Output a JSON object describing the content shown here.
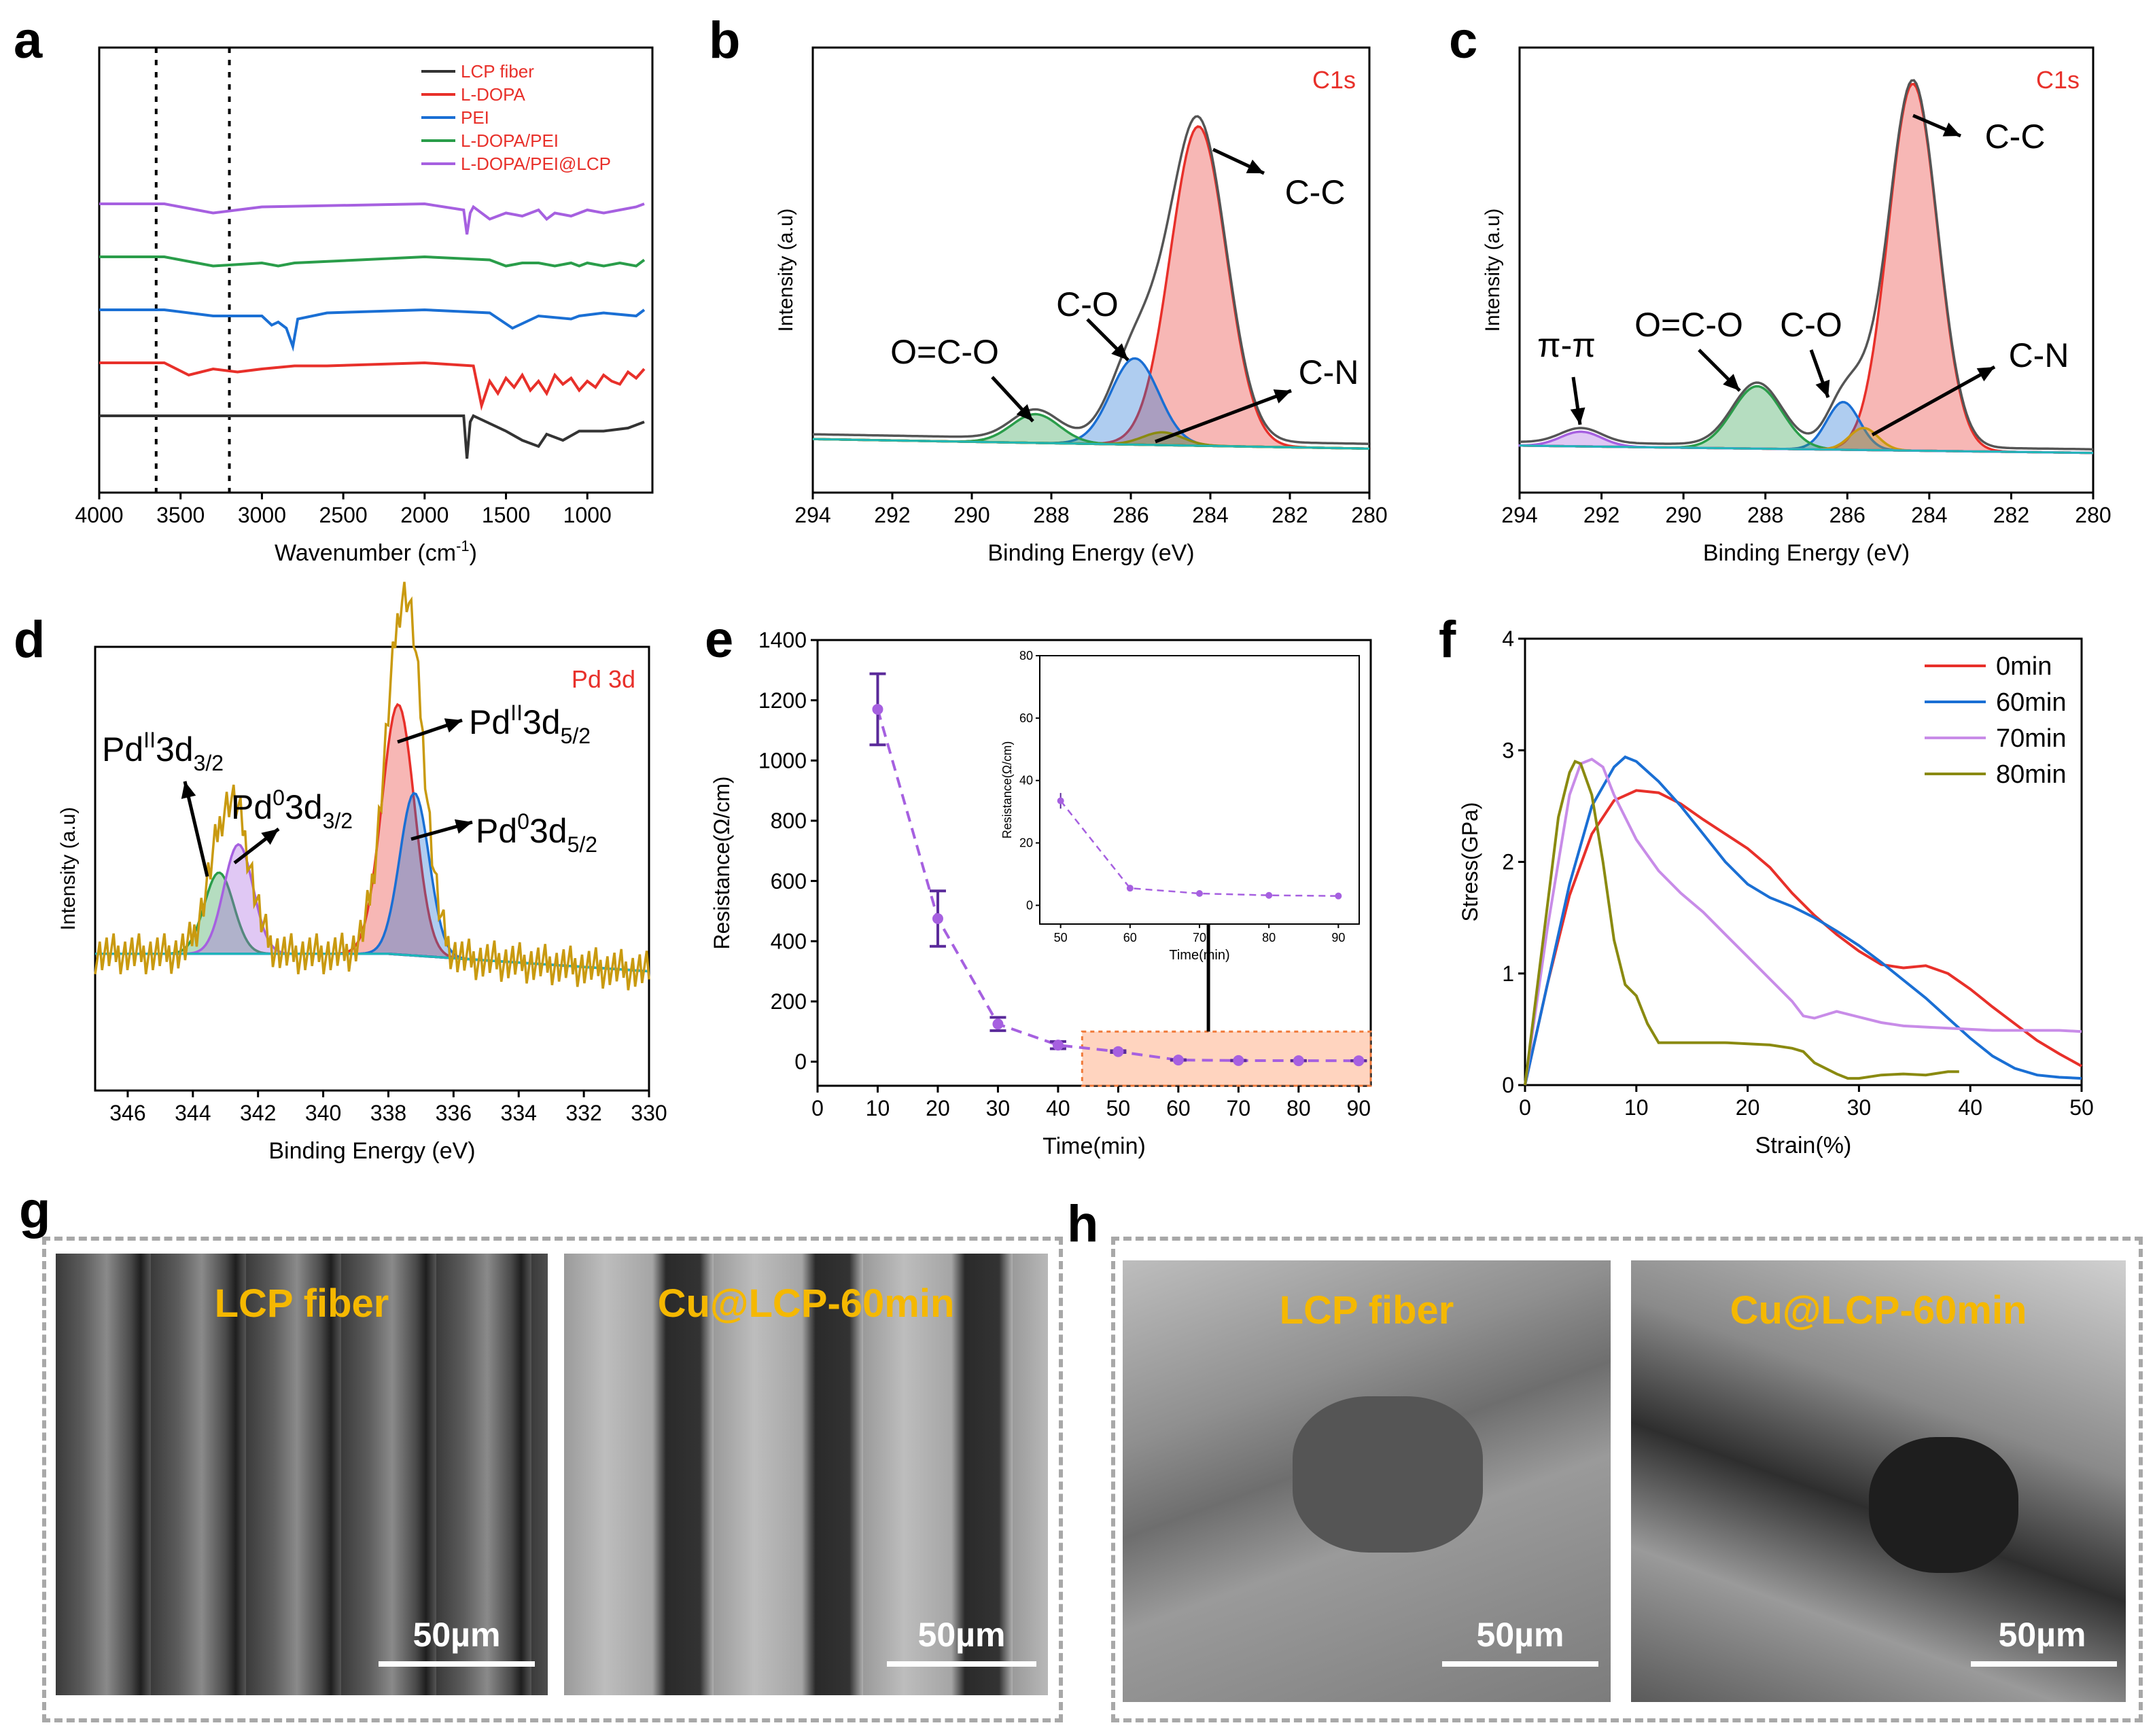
{
  "panel_labels": [
    "a",
    "b",
    "c",
    "d",
    "e",
    "f",
    "g",
    "h"
  ],
  "colors": {
    "black": "#333333",
    "red": "#e8302a",
    "blue": "#1a6fd4",
    "green": "#2a9d4a",
    "purple": "#a660e0",
    "olive": "#8a8a10",
    "gold": "#c99a10",
    "scale_text": "#ffffff",
    "sem_text": "#f5b800"
  },
  "chart_data": [
    {
      "panel": "a",
      "type": "line",
      "title": "",
      "xlabel": "Wavenumber (cm",
      "xlabel_sup": "-1",
      "xlabel_end": ")",
      "ylabel": "",
      "xlim": [
        4000,
        600
      ],
      "x_ticks": [
        4000,
        3500,
        3000,
        2500,
        2000,
        1500,
        1000
      ],
      "dashed_lines_x": [
        3650,
        3200
      ],
      "legend": [
        "LCP fiber",
        "L-DOPA",
        "PEI",
        "L-DOPA/PEI",
        "L-DOPA/PEI@LCP"
      ],
      "series": [
        {
          "name": "LCP fiber",
          "color": "#333333",
          "offset": 0,
          "x": [
            4000,
            3500,
            3000,
            2000,
            1760,
            1740,
            1720,
            1700,
            1500,
            1400,
            1300,
            1250,
            1150,
            1050,
            900,
            750,
            650
          ],
          "y": [
            0,
            0,
            0,
            0,
            0,
            -14,
            -2,
            0,
            -5,
            -8,
            -10,
            -6,
            -8,
            -5,
            -5,
            -4,
            -2
          ]
        },
        {
          "name": "L-DOPA",
          "color": "#e8302a",
          "offset": 1,
          "x": [
            4000,
            3600,
            3450,
            3300,
            3150,
            3000,
            2800,
            2600,
            2000,
            1700,
            1650,
            1600,
            1550,
            1500,
            1450,
            1400,
            1350,
            1300,
            1250,
            1200,
            1150,
            1100,
            1050,
            1000,
            950,
            900,
            850,
            800,
            750,
            700,
            650
          ],
          "y": [
            0,
            0,
            -4,
            -2,
            -3,
            -2,
            -1,
            -1,
            0,
            -1,
            -14,
            -6,
            -10,
            -5,
            -8,
            -4,
            -9,
            -6,
            -10,
            -4,
            -7,
            -5,
            -9,
            -6,
            -8,
            -4,
            -6,
            -7,
            -3,
            -5,
            -2
          ]
        },
        {
          "name": "PEI",
          "color": "#1a6fd4",
          "offset": 2,
          "x": [
            4000,
            3600,
            3300,
            3000,
            2940,
            2900,
            2850,
            2810,
            2780,
            2600,
            2000,
            1600,
            1460,
            1300,
            1100,
            1050,
            900,
            700,
            650
          ],
          "y": [
            0,
            0,
            -2,
            -2,
            -5,
            -4,
            -6,
            -12,
            -3,
            -1,
            0,
            -1,
            -6,
            -2,
            -3,
            -2,
            -1,
            -2,
            0
          ]
        },
        {
          "name": "L-DOPA/PEI",
          "color": "#2a9d4a",
          "offset": 3,
          "x": [
            4000,
            3600,
            3300,
            3000,
            2900,
            2800,
            2000,
            1600,
            1500,
            1400,
            1300,
            1200,
            1100,
            1050,
            1000,
            900,
            800,
            700,
            650
          ],
          "y": [
            0,
            0,
            -3,
            -2,
            -3,
            -2,
            0,
            -1,
            -3,
            -2,
            -2,
            -3,
            -2,
            -3,
            -2,
            -3,
            -2,
            -3,
            -1
          ]
        },
        {
          "name": "L-DOPA/PEI@LCP",
          "color": "#a660e0",
          "offset": 4,
          "x": [
            4000,
            3600,
            3300,
            3000,
            2000,
            1760,
            1740,
            1720,
            1700,
            1600,
            1500,
            1400,
            1300,
            1250,
            1200,
            1100,
            1000,
            900,
            800,
            700,
            650
          ],
          "y": [
            0,
            0,
            -3,
            -1,
            0,
            -2,
            -10,
            -3,
            -1,
            -5,
            -3,
            -4,
            -2,
            -5,
            -3,
            -4,
            -2,
            -3,
            -2,
            -1,
            0
          ]
        }
      ]
    },
    {
      "panel": "b",
      "type": "line",
      "title": "C1s",
      "xlabel": "Binding Energy (eV)",
      "ylabel": "Intensity (a.u)",
      "xlim": [
        294,
        280
      ],
      "x_ticks": [
        294,
        292,
        290,
        288,
        286,
        284,
        282,
        280
      ],
      "peaks": [
        {
          "label": "C-C",
          "center": 284.3,
          "height": 100,
          "sigma": 0.7,
          "color": "#e8302a"
        },
        {
          "label": "C-O",
          "center": 285.9,
          "height": 27,
          "sigma": 0.6,
          "color": "#1a6fd4"
        },
        {
          "label": "O=C-O",
          "center": 288.4,
          "height": 9,
          "sigma": 0.6,
          "color": "#2a9d4a"
        },
        {
          "label": "C-N",
          "center": 285.2,
          "height": 4,
          "sigma": 0.5,
          "color": "#8a8a10"
        }
      ],
      "background": [
        4,
        1
      ],
      "annotations": [
        "C-C",
        "C-O",
        "O=C-O",
        "C-N"
      ]
    },
    {
      "panel": "c",
      "type": "line",
      "title": "C1s",
      "xlabel": "Binding Energy (eV)",
      "ylabel": "Intensity (a.u)",
      "xlim": [
        294,
        280
      ],
      "x_ticks": [
        294,
        292,
        290,
        288,
        286,
        284,
        282,
        280
      ],
      "peaks": [
        {
          "label": "C-C",
          "center": 284.4,
          "height": 100,
          "sigma": 0.6,
          "color": "#e8302a"
        },
        {
          "label": "C-O",
          "center": 286.1,
          "height": 13,
          "sigma": 0.4,
          "color": "#1a6fd4"
        },
        {
          "label": "O=C-O",
          "center": 288.2,
          "height": 17,
          "sigma": 0.6,
          "color": "#2a9d4a"
        },
        {
          "label": "C-N",
          "center": 285.6,
          "height": 6,
          "sigma": 0.35,
          "color": "#c99a10"
        },
        {
          "label": "π-π",
          "center": 292.5,
          "height": 4,
          "sigma": 0.5,
          "color": "#a660e0"
        }
      ],
      "background": [
        3,
        1
      ],
      "annotations": [
        "π-π",
        "O=C-O",
        "C-O",
        "C-C",
        "C-N"
      ]
    },
    {
      "panel": "d",
      "type": "line",
      "title": "Pd 3d",
      "xlabel": "Binding Energy (eV)",
      "ylabel": "Intensity (a.u)",
      "xlim": [
        347,
        330
      ],
      "x_ticks": [
        346,
        344,
        342,
        340,
        338,
        336,
        334,
        332,
        330
      ],
      "peaks": [
        {
          "label": "PdII3d3/2",
          "center": 343.2,
          "height": 26,
          "sigma": 0.45,
          "color": "#2a9d4a"
        },
        {
          "label": "Pd03d3/2",
          "center": 342.6,
          "height": 35,
          "sigma": 0.45,
          "color": "#a660e0"
        },
        {
          "label": "PdII3d5/2",
          "center": 337.7,
          "height": 80,
          "sigma": 0.5,
          "color": "#e8302a"
        },
        {
          "label": "Pd03d5/2",
          "center": 337.2,
          "height": 52,
          "sigma": 0.45,
          "color": "#1a6fd4"
        }
      ],
      "annotations": [
        {
          "base": "Pd",
          "sup": "II",
          "main": "3d",
          "sub": "3/2"
        },
        {
          "base": "Pd",
          "sup": "0",
          "main": "3d",
          "sub": "3/2"
        },
        {
          "base": "Pd",
          "sup": "II",
          "main": "3d",
          "sub": "5/2"
        },
        {
          "base": "Pd",
          "sup": "0",
          "main": "3d",
          "sub": "5/2"
        }
      ]
    },
    {
      "panel": "e",
      "type": "scatter",
      "title": "",
      "xlabel": "Time(min)",
      "ylabel": "Resistance(Ω/cm)",
      "xlim": [
        0,
        92
      ],
      "ylim": [
        -80,
        1400
      ],
      "x_ticks": [
        0,
        10,
        20,
        30,
        40,
        50,
        60,
        70,
        80,
        90
      ],
      "y_ticks": [
        0,
        200,
        400,
        600,
        800,
        1000,
        1200,
        1400
      ],
      "x": [
        10,
        20,
        30,
        40,
        50,
        60,
        70,
        80,
        90
      ],
      "y": [
        1170,
        475,
        125,
        55,
        33.5,
        5.5,
        3.8,
        3.2,
        3.0
      ],
      "err": [
        118,
        92,
        22,
        12,
        3,
        1,
        0.8,
        0.5,
        0.5
      ],
      "inset": {
        "xlabel": "Time(min)",
        "ylabel": "Resistance(Ω/cm)",
        "xlim": [
          47,
          93
        ],
        "ylim": [
          -6,
          80
        ],
        "x_ticks": [
          50,
          60,
          70,
          80,
          90
        ],
        "y_ticks": [
          0,
          20,
          40,
          60,
          80
        ],
        "x": [
          50,
          60,
          70,
          80,
          90
        ],
        "y": [
          33.5,
          5.5,
          3.8,
          3.2,
          3.0
        ],
        "err": [
          2.5,
          0.6,
          0.6,
          0.5,
          0.5
        ]
      }
    },
    {
      "panel": "f",
      "type": "line",
      "title": "",
      "xlabel": "Strain(%)",
      "ylabel": "Stress(GPa)",
      "xlim": [
        0,
        50
      ],
      "ylim": [
        0,
        4
      ],
      "x_ticks": [
        0,
        10,
        20,
        30,
        40,
        50
      ],
      "y_ticks": [
        0,
        1,
        2,
        3,
        4
      ],
      "legend": [
        "0min",
        "60min",
        "70min",
        "80min"
      ],
      "series": [
        {
          "name": "0min",
          "color": "#e8302a",
          "x": [
            0,
            2,
            4,
            6,
            8,
            10,
            12,
            14,
            16,
            18,
            20,
            22,
            24,
            26,
            28,
            30,
            32,
            34,
            36,
            38,
            40,
            42,
            44,
            46,
            48,
            50
          ],
          "y": [
            0,
            0.9,
            1.7,
            2.25,
            2.55,
            2.64,
            2.62,
            2.52,
            2.38,
            2.25,
            2.12,
            1.95,
            1.72,
            1.52,
            1.35,
            1.2,
            1.08,
            1.05,
            1.07,
            1.0,
            0.86,
            0.7,
            0.55,
            0.4,
            0.28,
            0.17
          ]
        },
        {
          "name": "60min",
          "color": "#1a6fd4",
          "x": [
            0,
            2,
            4,
            6,
            8,
            9,
            10,
            12,
            14,
            16,
            18,
            20,
            22,
            24,
            26,
            28,
            30,
            32,
            34,
            36,
            38,
            40,
            42,
            44,
            46,
            48,
            50
          ],
          "y": [
            0,
            0.9,
            1.8,
            2.5,
            2.85,
            2.94,
            2.9,
            2.72,
            2.5,
            2.25,
            2.0,
            1.8,
            1.68,
            1.6,
            1.5,
            1.38,
            1.25,
            1.1,
            0.94,
            0.78,
            0.6,
            0.42,
            0.26,
            0.15,
            0.09,
            0.07,
            0.06
          ]
        },
        {
          "name": "70min",
          "color": "#c88ce8",
          "x": [
            0,
            2,
            4,
            5,
            6,
            7,
            8,
            10,
            12,
            14,
            16,
            18,
            20,
            22,
            24,
            25,
            26,
            28,
            30,
            32,
            34,
            36,
            38,
            40,
            42,
            44,
            46,
            48,
            50
          ],
          "y": [
            0,
            1.4,
            2.6,
            2.88,
            2.92,
            2.85,
            2.6,
            2.2,
            1.92,
            1.72,
            1.55,
            1.35,
            1.15,
            0.95,
            0.75,
            0.62,
            0.6,
            0.66,
            0.61,
            0.56,
            0.53,
            0.52,
            0.51,
            0.5,
            0.49,
            0.49,
            0.49,
            0.49,
            0.48
          ]
        },
        {
          "name": "80min",
          "color": "#8a8a10",
          "x": [
            0,
            1.5,
            3,
            4,
            4.5,
            5,
            6,
            7,
            8,
            9,
            10,
            11,
            12,
            14,
            16,
            18,
            20,
            22,
            24,
            25,
            26,
            28,
            29,
            30,
            32,
            34,
            36,
            38,
            39
          ],
          "y": [
            0,
            1.2,
            2.4,
            2.8,
            2.9,
            2.88,
            2.6,
            2.0,
            1.3,
            0.9,
            0.8,
            0.55,
            0.38,
            0.38,
            0.38,
            0.38,
            0.37,
            0.36,
            0.33,
            0.3,
            0.2,
            0.1,
            0.06,
            0.06,
            0.09,
            0.1,
            0.09,
            0.12,
            0.12
          ]
        }
      ]
    }
  ],
  "sem_panels": {
    "g": [
      {
        "title": "LCP fiber",
        "scale": "50µm"
      },
      {
        "title": "Cu@LCP-60min",
        "scale": "50µm"
      }
    ],
    "h": [
      {
        "title": "LCP fiber",
        "scale": "50µm"
      },
      {
        "title": "Cu@LCP-60min",
        "scale": "50µm"
      }
    ]
  }
}
